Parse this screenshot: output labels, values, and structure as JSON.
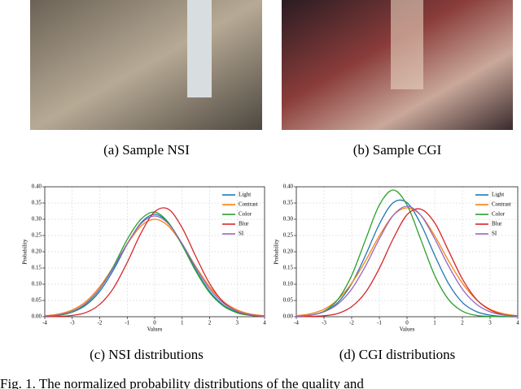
{
  "panels": [
    {
      "caption": "(a)  Sample NSI"
    },
    {
      "caption": "(b)  Sample CGI"
    }
  ],
  "chart_data": [
    {
      "type": "line",
      "caption": "(c)  NSI distributions",
      "x_label": "Values",
      "y_label": "Probability",
      "grid": true,
      "legend": "upper right",
      "x": [
        -4,
        -3.5,
        -3,
        -2.5,
        -2,
        -1.5,
        -1,
        -0.5,
        0,
        0.5,
        1,
        1.5,
        2,
        2.5,
        3,
        3.5,
        4
      ],
      "xlim": [
        -4,
        4
      ],
      "xticks": [
        -4,
        -3,
        -2,
        -1,
        0,
        1,
        2,
        3,
        4
      ],
      "ylim": [
        0,
        0.4
      ],
      "yticks": [
        {
          "value": 0,
          "label": "0.00"
        },
        {
          "value": 0.05,
          "label": "0.05"
        },
        {
          "value": 0.1,
          "label": "0.10"
        },
        {
          "value": 0.15,
          "label": "0.15"
        },
        {
          "value": 0.2,
          "label": "0.20"
        },
        {
          "value": 0.25,
          "label": "0.25"
        },
        {
          "value": 0.3,
          "label": "0.30"
        },
        {
          "value": 0.35,
          "label": "0.35"
        },
        {
          "value": 0.4,
          "label": "0.40"
        }
      ],
      "series": [
        {
          "name": "Light",
          "color": "#1f77b4",
          "values": [
            0.001,
            0.004,
            0.014,
            0.036,
            0.078,
            0.144,
            0.223,
            0.289,
            0.315,
            0.289,
            0.223,
            0.144,
            0.078,
            0.036,
            0.014,
            0.004,
            0.001
          ]
        },
        {
          "name": "Contrast",
          "color": "#ff7f0e",
          "values": [
            0.003,
            0.008,
            0.021,
            0.047,
            0.092,
            0.154,
            0.223,
            0.279,
            0.3,
            0.279,
            0.223,
            0.154,
            0.092,
            0.047,
            0.021,
            0.008,
            0.003
          ]
        },
        {
          "name": "Color",
          "color": "#2ca02c",
          "values": [
            0.001,
            0.004,
            0.015,
            0.04,
            0.085,
            0.155,
            0.238,
            0.3,
            0.322,
            0.29,
            0.22,
            0.14,
            0.074,
            0.033,
            0.012,
            0.004,
            0.001
          ]
        },
        {
          "name": "Blur",
          "color": "#d62728",
          "values": [
            0,
            0.001,
            0.004,
            0.013,
            0.038,
            0.088,
            0.167,
            0.257,
            0.323,
            0.331,
            0.274,
            0.185,
            0.102,
            0.045,
            0.017,
            0.005,
            0.001
          ]
        },
        {
          "name": "SI",
          "color": "#9467bd",
          "values": [
            0.002,
            0.006,
            0.017,
            0.042,
            0.086,
            0.151,
            0.225,
            0.286,
            0.31,
            0.286,
            0.225,
            0.151,
            0.086,
            0.042,
            0.017,
            0.006,
            0.002
          ]
        }
      ]
    },
    {
      "type": "line",
      "caption": "(d)  CGI distributions",
      "x_label": "Values",
      "y_label": "Probability",
      "grid": true,
      "legend": "upper right",
      "x": [
        -4,
        -3.5,
        -3,
        -2.5,
        -2,
        -1.5,
        -1,
        -0.5,
        0,
        0.5,
        1,
        1.5,
        2,
        2.5,
        3,
        3.5,
        4
      ],
      "xlim": [
        -4,
        4
      ],
      "xticks": [
        -4,
        -3,
        -2,
        -1,
        0,
        1,
        2,
        3,
        4
      ],
      "ylim": [
        0,
        0.4
      ],
      "yticks": [
        {
          "value": 0,
          "label": "0.00"
        },
        {
          "value": 0.05,
          "label": "0.05"
        },
        {
          "value": 0.1,
          "label": "0.10"
        },
        {
          "value": 0.15,
          "label": "0.15"
        },
        {
          "value": 0.2,
          "label": "0.20"
        },
        {
          "value": 0.25,
          "label": "0.25"
        },
        {
          "value": 0.3,
          "label": "0.30"
        },
        {
          "value": 0.35,
          "label": "0.35"
        },
        {
          "value": 0.4,
          "label": "0.40"
        }
      ],
      "series": [
        {
          "name": "Light",
          "color": "#1f77b4",
          "values": [
            0.001,
            0.005,
            0.016,
            0.044,
            0.102,
            0.189,
            0.285,
            0.351,
            0.351,
            0.285,
            0.189,
            0.102,
            0.044,
            0.016,
            0.005,
            0.001,
            0
          ]
        },
        {
          "name": "Contrast",
          "color": "#ff7f0e",
          "values": [
            0.003,
            0.009,
            0.023,
            0.053,
            0.103,
            0.172,
            0.249,
            0.312,
            0.335,
            0.312,
            0.249,
            0.172,
            0.103,
            0.053,
            0.023,
            0.009,
            0.003
          ]
        },
        {
          "name": "Color",
          "color": "#2ca02c",
          "values": [
            0.001,
            0.004,
            0.017,
            0.053,
            0.127,
            0.237,
            0.344,
            0.39,
            0.344,
            0.237,
            0.127,
            0.053,
            0.017,
            0.004,
            0.001,
            0,
            0
          ]
        },
        {
          "name": "Blur",
          "color": "#d62728",
          "values": [
            0,
            0.001,
            0.003,
            0.01,
            0.031,
            0.075,
            0.149,
            0.24,
            0.314,
            0.331,
            0.289,
            0.203,
            0.116,
            0.054,
            0.021,
            0.006,
            0.002
          ]
        },
        {
          "name": "SI",
          "color": "#9467bd",
          "values": [
            0.001,
            0.005,
            0.015,
            0.039,
            0.085,
            0.156,
            0.24,
            0.312,
            0.34,
            0.312,
            0.24,
            0.156,
            0.085,
            0.039,
            0.015,
            0.005,
            0.001
          ]
        }
      ]
    }
  ],
  "figure_caption": "Fig. 1.   The normalized probability distributions of the quality and"
}
